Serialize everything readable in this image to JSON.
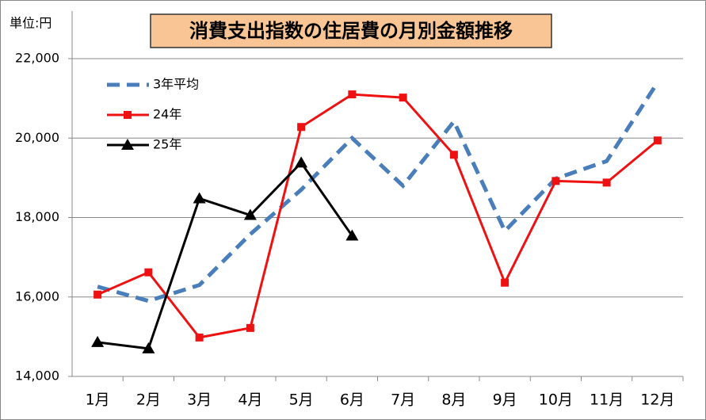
{
  "chart_data": {
    "type": "line",
    "title": "消費支出指数の住居費の月別金額推移",
    "y_unit": "単位:円",
    "categories": [
      "1月",
      "2月",
      "3月",
      "4月",
      "5月",
      "6月",
      "7月",
      "8月",
      "9月",
      "10月",
      "11月",
      "12月"
    ],
    "ylim": [
      14000,
      22000
    ],
    "yticks": [
      {
        "value": 14000,
        "label": "14,000"
      },
      {
        "value": 16000,
        "label": "16,000"
      },
      {
        "value": 18000,
        "label": "18,000"
      },
      {
        "value": 20000,
        "label": "20,000"
      },
      {
        "value": 22000,
        "label": "22,000"
      }
    ],
    "grid": true,
    "legend": "top-left",
    "series": [
      {
        "name": "3年平均",
        "color": "#4a7ebb",
        "style": "dashed",
        "marker": "none",
        "values": [
          16260,
          15900,
          16300,
          17580,
          18700,
          20000,
          18800,
          20420,
          17660,
          18980,
          19420,
          21400
        ]
      },
      {
        "name": "24年",
        "color": "#ee1111",
        "style": "solid",
        "marker": "square",
        "values": [
          16060,
          16620,
          14980,
          15220,
          20280,
          21100,
          21020,
          19580,
          16360,
          18920,
          18880,
          19940
        ]
      },
      {
        "name": "25年",
        "color": "#000000",
        "style": "solid",
        "marker": "triangle",
        "values": [
          14860,
          14700,
          18480,
          18060,
          19380,
          17540,
          null,
          null,
          null,
          null,
          null,
          null
        ]
      }
    ]
  }
}
